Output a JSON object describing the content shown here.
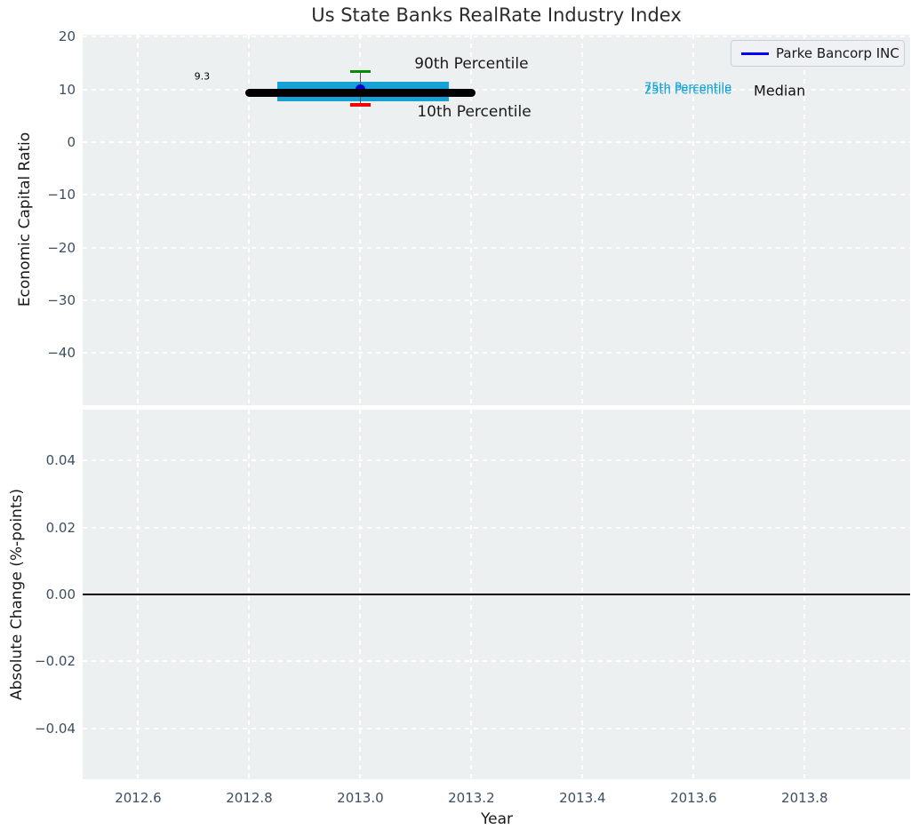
{
  "figure": {
    "title": "Us State Banks RealRate Industry Index",
    "background": "#ffffff",
    "plot_background": "#ecf0f1",
    "grid_color": "#ffffff",
    "tick_color": "#3d4f63"
  },
  "legend": {
    "label": "Parke Bancorp INC",
    "line_color": "#0000ff",
    "position": "upper right"
  },
  "chart_data": [
    {
      "type": "line",
      "title": "Us State Banks RealRate Industry Index",
      "ylabel": "Economic Capital Ratio",
      "xlim": [
        2012.5,
        2013.99
      ],
      "ylim": [
        -49.9,
        20.4
      ],
      "xticks": [
        2012.6,
        2012.8,
        2013.0,
        2013.2,
        2013.4,
        2013.6,
        2013.8
      ],
      "yticks": [
        20,
        10,
        0,
        -10,
        -20,
        -30,
        -40
      ],
      "ytick_labels": [
        "20",
        "10",
        "0",
        "−10",
        "−20",
        "−30",
        "−40"
      ],
      "grid": true,
      "legend_position": "upper right",
      "series": [
        {
          "name": "75th Percentile",
          "kind": "hsegment",
          "x1": 2012.85,
          "x2": 2013.16,
          "y": 10.6,
          "color": "#16a1d7",
          "linewidth": 10
        },
        {
          "name": "25th Percentile",
          "kind": "hsegment",
          "x1": 2012.85,
          "x2": 2013.16,
          "y": 8.6,
          "color": "#16a1d7",
          "linewidth": 10
        },
        {
          "name": "whisker-stem",
          "kind": "vsegment",
          "x": 2013.0,
          "y1": 7.1,
          "y2": 13.4,
          "color": "#555555",
          "linewidth": 1.4
        },
        {
          "name": "90th Percentile",
          "kind": "hsegment",
          "x1": 2012.981,
          "x2": 2013.019,
          "y": 13.4,
          "color": "#008c00",
          "linewidth": 3.4
        },
        {
          "name": "10th Percentile",
          "kind": "hsegment",
          "x1": 2012.981,
          "x2": 2013.019,
          "y": 7.1,
          "color": "#f00000",
          "linewidth": 3.4
        },
        {
          "name": "Parke Bancorp INC",
          "kind": "point",
          "x": 2013.0,
          "y": 10.0,
          "color": "#0000cd",
          "markersize": 11
        },
        {
          "name": "Median",
          "kind": "hsegment",
          "x1": 2012.8,
          "x2": 2013.2,
          "y": 9.3,
          "color": "#000000",
          "linewidth": 9,
          "rounded": true
        }
      ],
      "annotations": [
        {
          "text": "9.3",
          "x": 2012.715,
          "y": 12.4,
          "color": "#000000",
          "size": 11
        },
        {
          "text": "90th Percentile",
          "x": 2013.2,
          "y": 14.9,
          "color": "#1a1a1a",
          "size": 17
        },
        {
          "text": "10th Percentile",
          "x": 2013.205,
          "y": 5.8,
          "color": "#1a1a1a",
          "size": 17
        },
        {
          "text": "75th Percentile",
          "x": 2013.59,
          "y": 10.35,
          "color": "#16a1d7",
          "size": 13
        },
        {
          "text": "25th Percentile",
          "x": 2013.59,
          "y": 9.85,
          "color": "#16a1d7",
          "size": 13
        },
        {
          "text": "Median",
          "x": 2013.755,
          "y": 9.75,
          "color": "#111111",
          "size": 16
        }
      ]
    },
    {
      "type": "line",
      "ylabel": "Absolute Change (%-points)",
      "xlabel": "Year",
      "xlim": [
        2012.5,
        2013.99
      ],
      "ylim": [
        -0.0551,
        0.0551
      ],
      "xticks": [
        2012.6,
        2012.8,
        2013.0,
        2013.2,
        2013.4,
        2013.6,
        2013.8
      ],
      "xtick_labels": [
        "2012.6",
        "2012.8",
        "2013.0",
        "2013.2",
        "2013.4",
        "2013.6",
        "2013.8"
      ],
      "yticks": [
        0.04,
        0.02,
        0,
        -0.02,
        -0.04
      ],
      "ytick_labels": [
        "0.04",
        "0.02",
        "0.00",
        "−0.02",
        "−0.04"
      ],
      "grid": true,
      "series": [
        {
          "name": "zero-line",
          "kind": "hsegment",
          "x1": 2012.5,
          "x2": 2013.99,
          "y": 0,
          "color": "#000000",
          "linewidth": 1.8
        }
      ],
      "annotations": []
    }
  ]
}
